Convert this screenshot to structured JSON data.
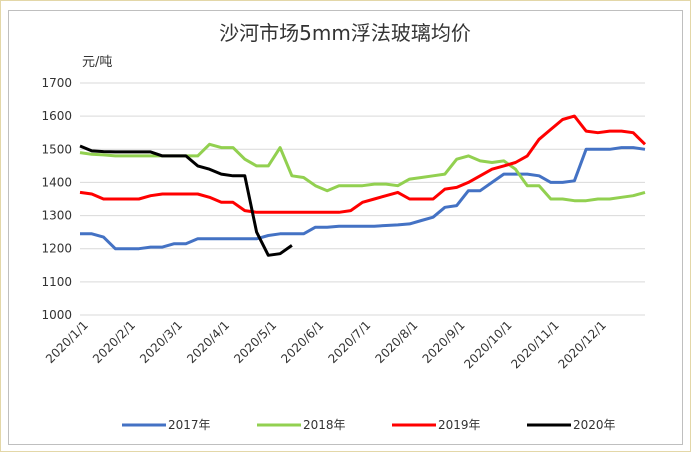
{
  "chart_data": {
    "type": "line",
    "title": "沙河市场5mm浮法玻璃均价",
    "y_label": "元/吨",
    "categories": [
      "2020/1/1",
      null,
      null,
      null,
      "2020/2/1",
      null,
      null,
      null,
      "2020/3/1",
      null,
      null,
      null,
      "2020/4/1",
      null,
      null,
      null,
      "2020/5/1",
      null,
      null,
      null,
      "2020/6/1",
      null,
      null,
      null,
      "2020/7/1",
      null,
      null,
      null,
      "2020/8/1",
      null,
      null,
      null,
      "2020/9/1",
      null,
      null,
      null,
      "2020/10/1",
      null,
      null,
      null,
      "2020/11/1",
      null,
      null,
      null,
      "2020/12/1",
      null,
      null,
      null,
      null
    ],
    "series": [
      {
        "name": "2017年",
        "color": "#4472c4",
        "values": [
          1245,
          1245,
          1235,
          1200,
          1200,
          1200,
          1205,
          1205,
          1215,
          1215,
          1230,
          1230,
          1230,
          1230,
          1230,
          1230,
          1240,
          1245,
          1245,
          1245,
          1265,
          1265,
          1268,
          1268,
          1268,
          1268,
          1270,
          1272,
          1275,
          1285,
          1295,
          1325,
          1330,
          1375,
          1375,
          1400,
          1425,
          1425,
          1425,
          1420,
          1400,
          1400,
          1405,
          1500,
          1500,
          1500,
          1505,
          1505,
          1500
        ]
      },
      {
        "name": "2018年",
        "color": "#92d050",
        "values": [
          1490,
          1485,
          1483,
          1480,
          1480,
          1480,
          1480,
          1480,
          1480,
          1480,
          1480,
          1515,
          1505,
          1505,
          1470,
          1450,
          1450,
          1505,
          1420,
          1415,
          1390,
          1375,
          1390,
          1390,
          1390,
          1395,
          1395,
          1390,
          1410,
          1415,
          1420,
          1425,
          1470,
          1480,
          1465,
          1460,
          1465,
          1440,
          1390,
          1390,
          1350,
          1350,
          1345,
          1345,
          1350,
          1350,
          1355,
          1360,
          1370
        ]
      },
      {
        "name": "2019年",
        "color": "#ff0000",
        "values": [
          1370,
          1365,
          1350,
          1350,
          1350,
          1350,
          1360,
          1365,
          1365,
          1365,
          1365,
          1355,
          1340,
          1340,
          1315,
          1310,
          1310,
          1310,
          1310,
          1310,
          1310,
          1310,
          1310,
          1315,
          1340,
          1350,
          1360,
          1370,
          1350,
          1350,
          1350,
          1380,
          1385,
          1400,
          1420,
          1440,
          1450,
          1460,
          1480,
          1530,
          1560,
          1590,
          1600,
          1555,
          1550,
          1555,
          1555,
          1550,
          1515
        ]
      },
      {
        "name": "2020年",
        "color": "#000000",
        "values": [
          1510,
          1495,
          1493,
          1492,
          1492,
          1492,
          1492,
          1480,
          1480,
          1480,
          1450,
          1440,
          1425,
          1420,
          1420,
          1250,
          1180,
          1185,
          1210,
          null,
          null,
          null,
          null,
          null,
          null,
          null,
          null,
          null,
          null,
          null,
          null,
          null,
          null,
          null,
          null,
          null,
          null,
          null,
          null,
          null,
          null,
          null,
          null,
          null,
          null,
          null,
          null,
          null,
          null
        ]
      }
    ],
    "ylim": [
      1000,
      1700
    ],
    "yticks": [
      1000,
      1100,
      1200,
      1300,
      1400,
      1500,
      1600,
      1700
    ],
    "grid": true,
    "legend": "bottom"
  }
}
